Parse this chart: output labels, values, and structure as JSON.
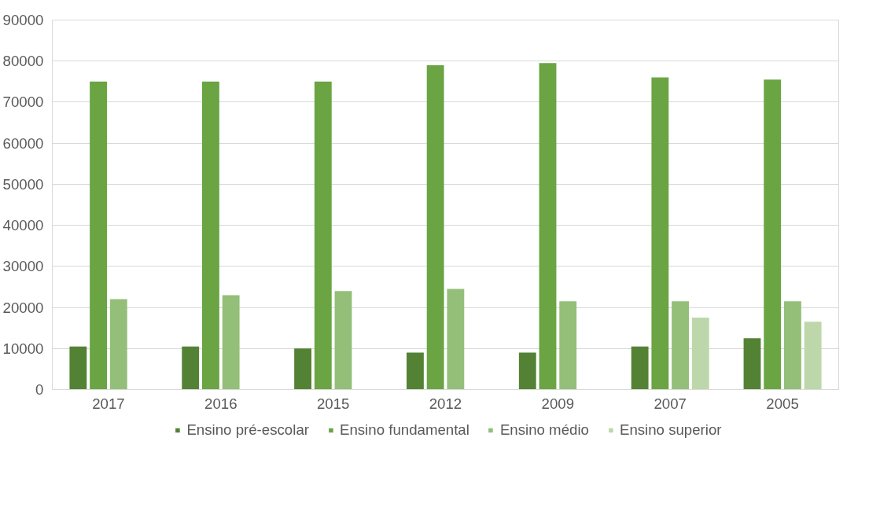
{
  "chart_data": {
    "type": "bar",
    "categories": [
      "2017",
      "2016",
      "2015",
      "2012",
      "2009",
      "2007",
      "2005"
    ],
    "series": [
      {
        "name": "Ensino pré-escolar",
        "color": "#548235",
        "values": [
          10500,
          10500,
          10000,
          9000,
          9000,
          10500,
          12500
        ]
      },
      {
        "name": "Ensino fundamental",
        "color": "#6aa443",
        "values": [
          75000,
          75000,
          75000,
          79000,
          79500,
          76000,
          75500
        ]
      },
      {
        "name": "Ensino médio",
        "color": "#93bf78",
        "values": [
          22000,
          23000,
          24000,
          24500,
          21500,
          21500,
          21500
        ]
      },
      {
        "name": "Ensino superior",
        "color": "#bdd7ab",
        "values": [
          null,
          null,
          null,
          null,
          null,
          17500,
          16500
        ]
      }
    ],
    "ylim": [
      0,
      90000
    ],
    "yticks": [
      0,
      10000,
      20000,
      30000,
      40000,
      50000,
      60000,
      70000,
      80000,
      90000
    ],
    "grid": "y",
    "legend": "bottom"
  }
}
